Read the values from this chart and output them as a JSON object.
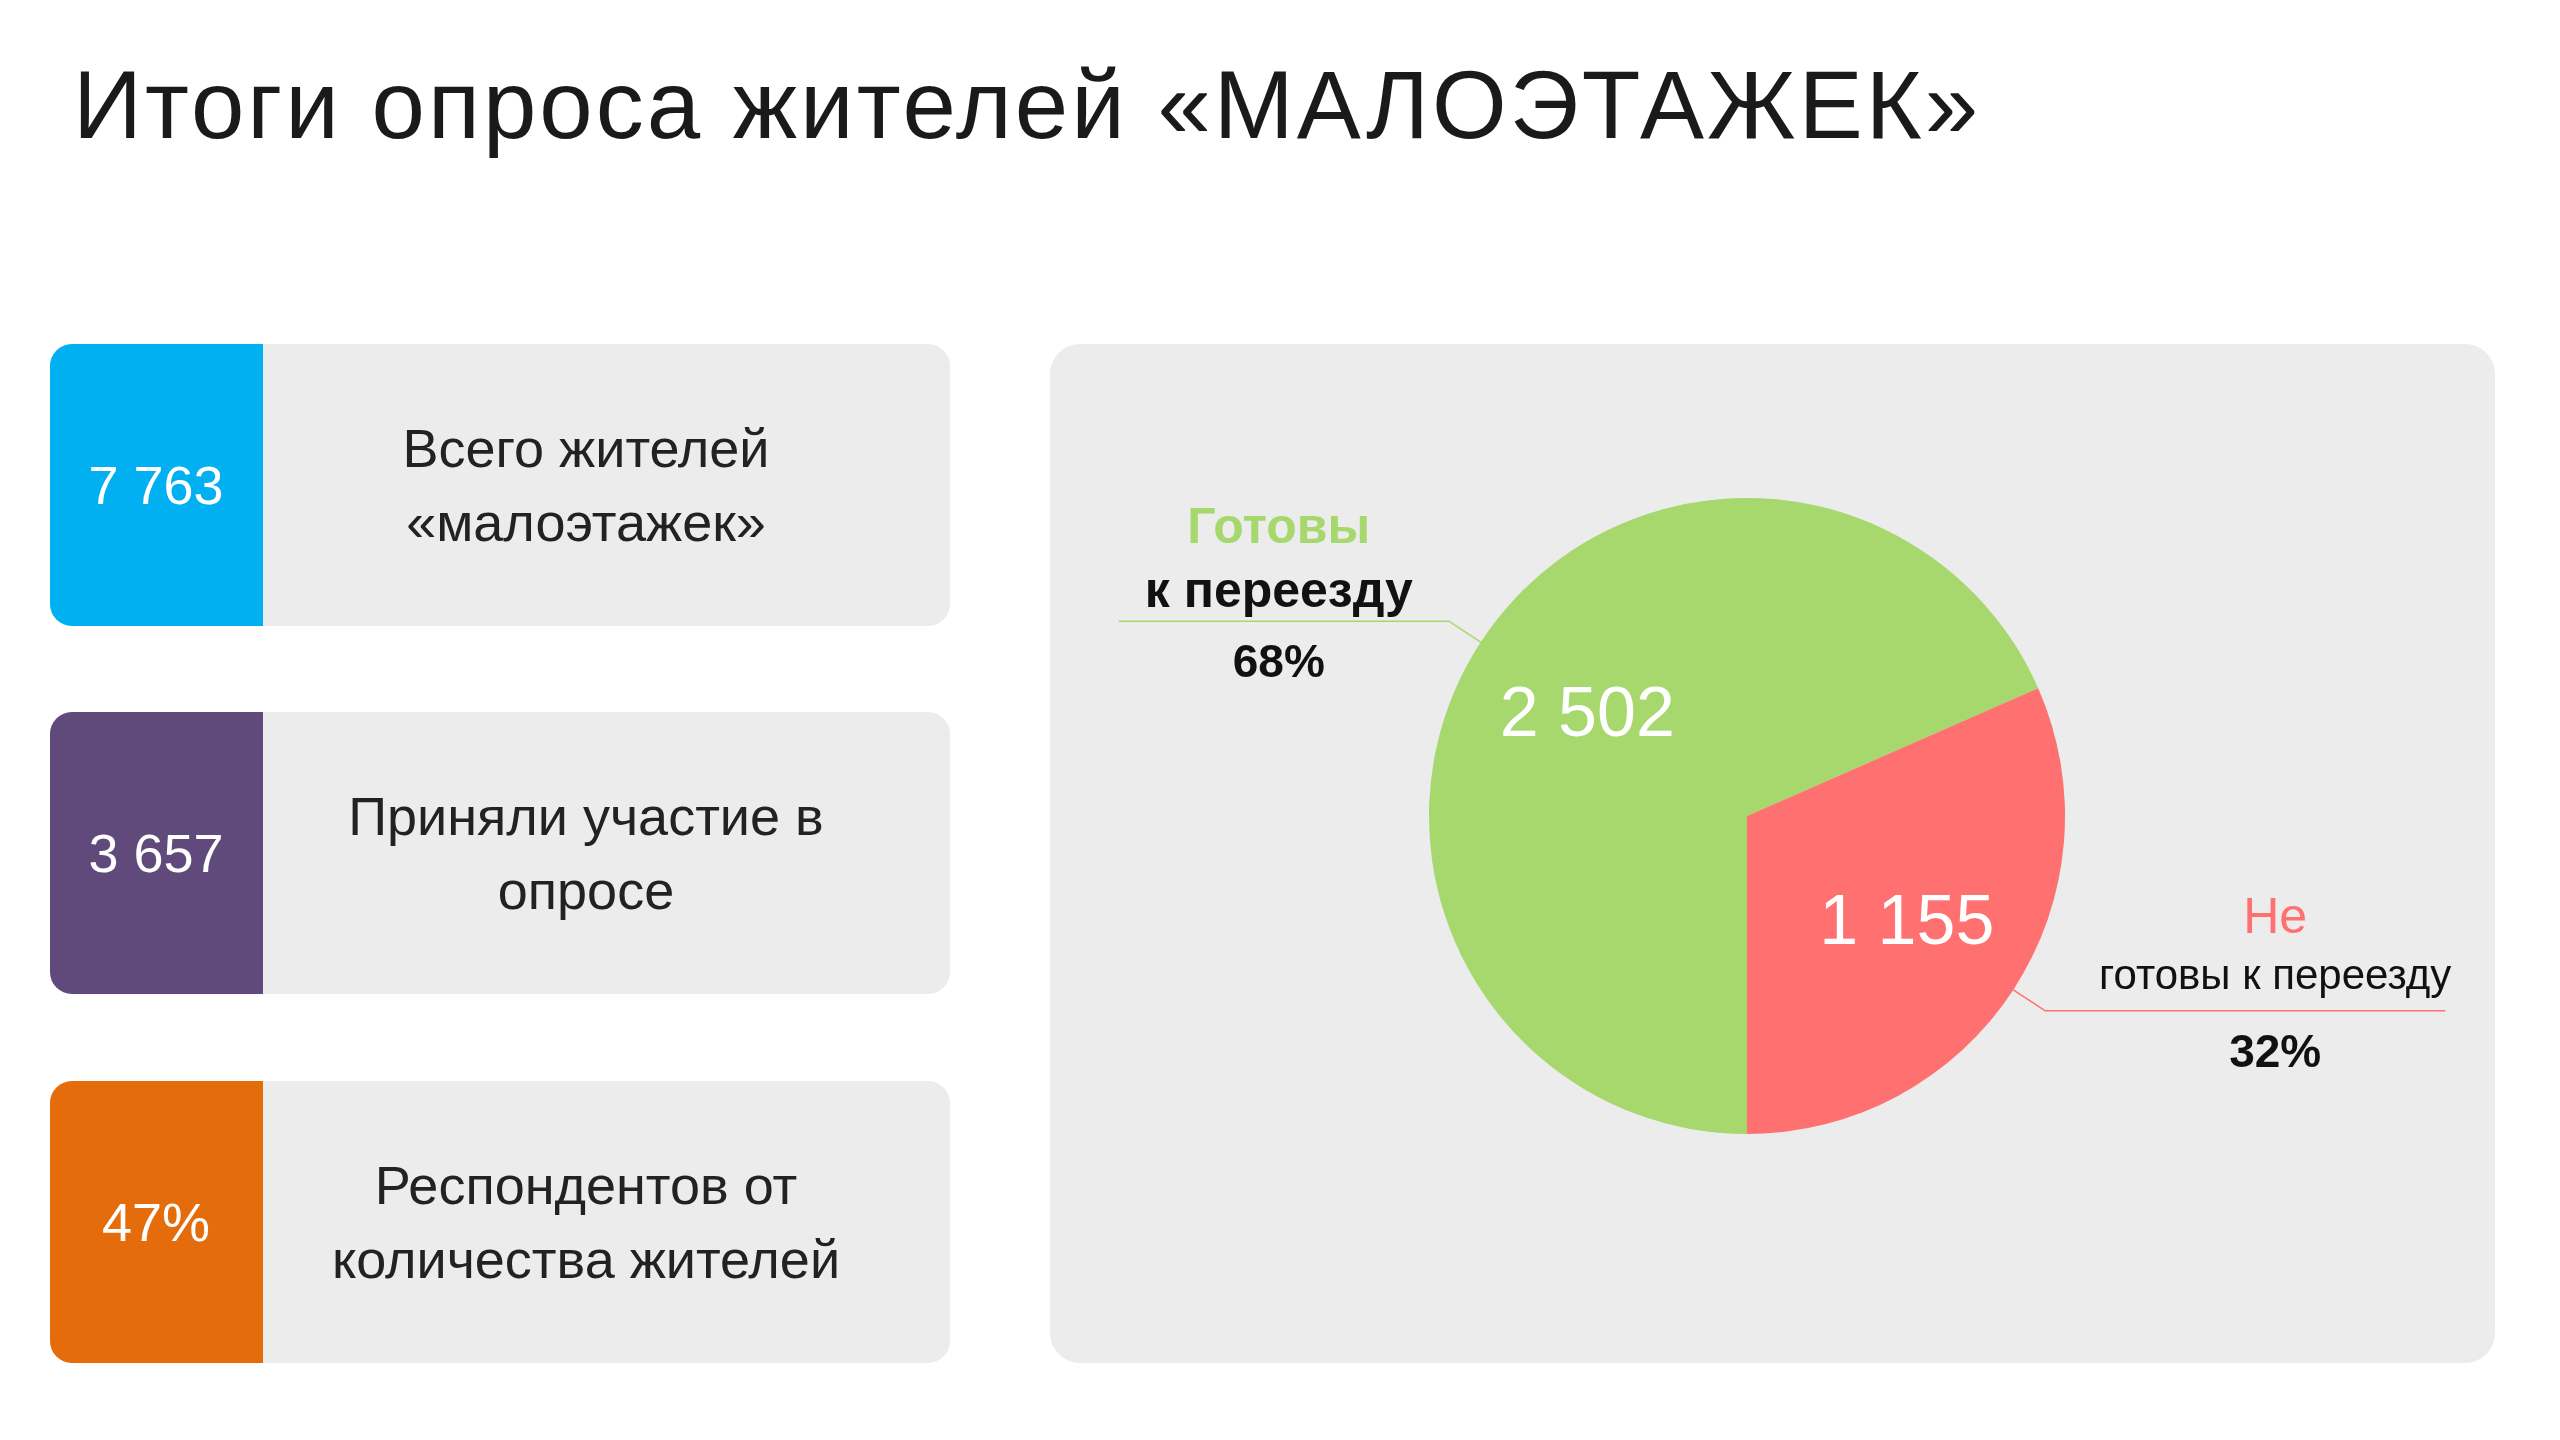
{
  "chart_data": [
    {
      "type": "other",
      "title": "Итоги опроса жителей «МАЛОЭТАЖЕК»",
      "annotations": [
        "Всего жителей «малоэтажек»",
        "Приняли участие в опросе",
        "Респондентов от количества жителей"
      ],
      "value_labels": [
        "7 763",
        "3 657",
        "47%"
      ],
      "colors": [
        "#00b0f0",
        "#604a7b",
        "#e46c0a"
      ]
    },
    {
      "type": "pie",
      "categories": [
        "Готовы к переезду",
        "Не готовы к переезду"
      ],
      "values": [
        2502,
        1155
      ],
      "colors": [
        "#a6d86e",
        "#ff7070"
      ],
      "data_labels": true,
      "annotations": [
        "68%",
        "32%"
      ]
    }
  ]
}
